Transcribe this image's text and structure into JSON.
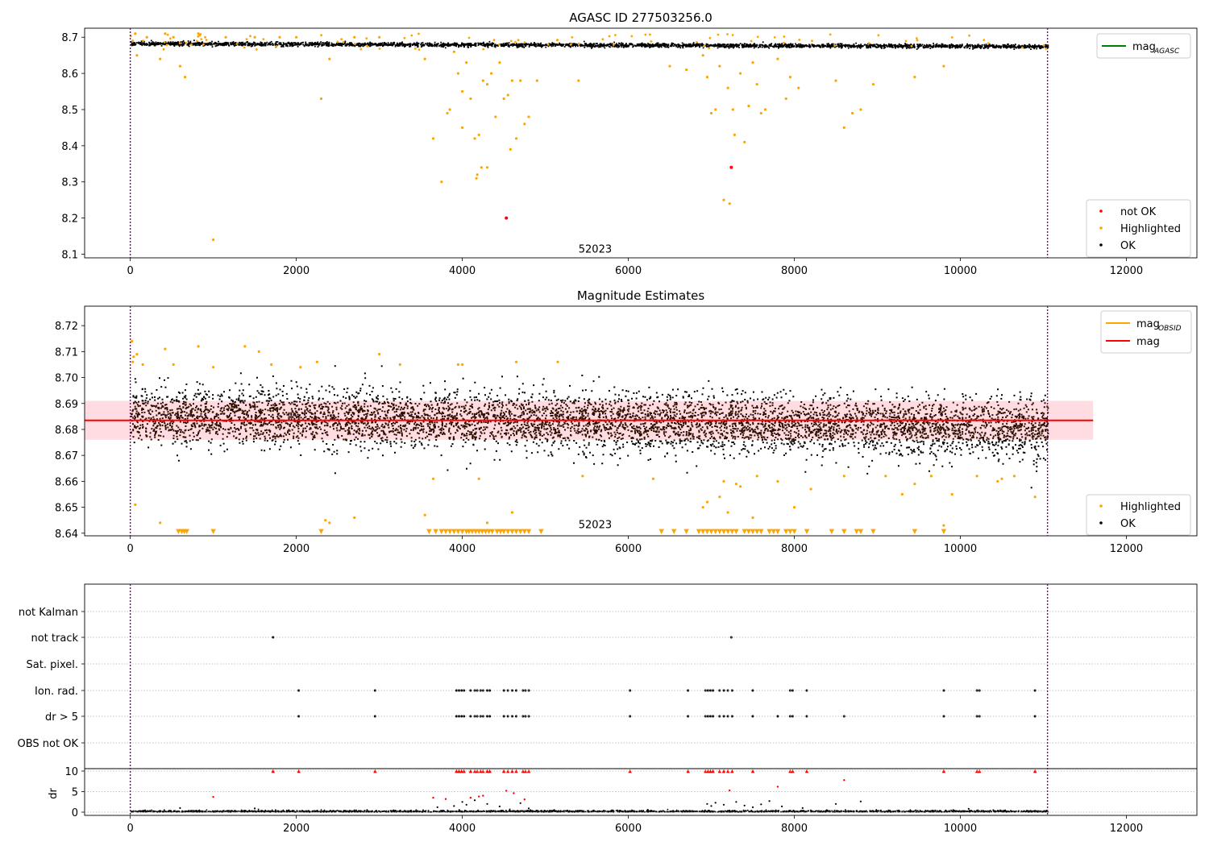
{
  "chart_data": [
    {
      "type": "scatter",
      "title": "AGASC ID 277503256.0",
      "xlim": [
        -550,
        12850
      ],
      "ylim": [
        8.09,
        8.725
      ],
      "xticks": [
        0,
        2000,
        4000,
        6000,
        8000,
        10000,
        12000
      ],
      "yticks": [
        8.1,
        8.2,
        8.3,
        8.4,
        8.5,
        8.6,
        8.7
      ],
      "vlines": [
        0,
        11050
      ],
      "annotation": {
        "text": "52023",
        "x": 5400,
        "y": 8.105
      },
      "legend_lines": [
        {
          "label": "mag",
          "subscript": "AGASC",
          "color": "#008000"
        }
      ],
      "legend_points": [
        {
          "label": "not OK",
          "color": "#ff0000"
        },
        {
          "label": "Highlighted",
          "color": "#ffa500"
        },
        {
          "label": "OK",
          "color": "#000000"
        }
      ],
      "ok_band": {
        "x_range": [
          0,
          11050
        ],
        "center": 8.684,
        "spread": 0.006,
        "slope": -7e-07,
        "count": 3200,
        "color": "#000000"
      },
      "highlighted": [
        [
          30,
          8.69
        ],
        [
          60,
          8.71
        ],
        [
          80,
          8.65
        ],
        [
          200,
          8.7
        ],
        [
          360,
          8.64
        ],
        [
          420,
          8.71
        ],
        [
          520,
          8.7
        ],
        [
          600,
          8.62
        ],
        [
          660,
          8.59
        ],
        [
          820,
          8.71
        ],
        [
          1000,
          8.14
        ],
        [
          1150,
          8.7
        ],
        [
          1500,
          8.7
        ],
        [
          1800,
          8.7
        ],
        [
          2000,
          8.7
        ],
        [
          2300,
          8.53
        ],
        [
          2400,
          8.64
        ],
        [
          2700,
          8.7
        ],
        [
          3000,
          8.7
        ],
        [
          3550,
          8.64
        ],
        [
          3650,
          8.42
        ],
        [
          3750,
          8.3
        ],
        [
          3820,
          8.49
        ],
        [
          3850,
          8.5
        ],
        [
          3900,
          8.66
        ],
        [
          3950,
          8.6
        ],
        [
          4000,
          8.45
        ],
        [
          4000,
          8.55
        ],
        [
          4050,
          8.63
        ],
        [
          4100,
          8.53
        ],
        [
          4150,
          8.42
        ],
        [
          4170,
          8.31
        ],
        [
          4180,
          8.32
        ],
        [
          4200,
          8.43
        ],
        [
          4230,
          8.34
        ],
        [
          4250,
          8.58
        ],
        [
          4300,
          8.34
        ],
        [
          4300,
          8.57
        ],
        [
          4350,
          8.6
        ],
        [
          4400,
          8.48
        ],
        [
          4450,
          8.63
        ],
        [
          4500,
          8.53
        ],
        [
          4550,
          8.54
        ],
        [
          4580,
          8.39
        ],
        [
          4600,
          8.58
        ],
        [
          4650,
          8.42
        ],
        [
          4700,
          8.58
        ],
        [
          4750,
          8.46
        ],
        [
          4800,
          8.48
        ],
        [
          4900,
          8.58
        ],
        [
          5400,
          8.58
        ],
        [
          6500,
          8.62
        ],
        [
          6700,
          8.61
        ],
        [
          6900,
          8.65
        ],
        [
          6950,
          8.59
        ],
        [
          7000,
          8.49
        ],
        [
          7050,
          8.5
        ],
        [
          7100,
          8.62
        ],
        [
          7150,
          8.25
        ],
        [
          7200,
          8.56
        ],
        [
          7220,
          8.24
        ],
        [
          7260,
          8.5
        ],
        [
          7280,
          8.43
        ],
        [
          7350,
          8.6
        ],
        [
          7400,
          8.41
        ],
        [
          7450,
          8.51
        ],
        [
          7500,
          8.63
        ],
        [
          7550,
          8.57
        ],
        [
          7600,
          8.49
        ],
        [
          7650,
          8.5
        ],
        [
          7800,
          8.64
        ],
        [
          7900,
          8.53
        ],
        [
          7950,
          8.59
        ],
        [
          8050,
          8.56
        ],
        [
          8500,
          8.58
        ],
        [
          8600,
          8.45
        ],
        [
          8700,
          8.49
        ],
        [
          8800,
          8.5
        ],
        [
          8950,
          8.57
        ],
        [
          9450,
          8.59
        ],
        [
          9800,
          8.62
        ]
      ],
      "not_ok": [
        [
          4530,
          8.2
        ],
        [
          7240,
          8.34
        ]
      ]
    },
    {
      "type": "scatter",
      "title": "Magnitude Estimates",
      "xlim": [
        -550,
        12850
      ],
      "ylim": [
        8.639,
        8.7275
      ],
      "xticks": [
        0,
        2000,
        4000,
        6000,
        8000,
        10000,
        12000
      ],
      "yticks": [
        8.64,
        8.65,
        8.66,
        8.67,
        8.68,
        8.69,
        8.7,
        8.71,
        8.72
      ],
      "vlines": [
        0,
        11050
      ],
      "annotation": {
        "text": "52023",
        "x": 5400,
        "y": 8.642
      },
      "mag_line": {
        "value": 8.6835,
        "x_range": [
          -550,
          11600
        ],
        "color": "#ff0000"
      },
      "mag_band": {
        "low": 8.676,
        "high": 8.691,
        "x_range": [
          -550,
          11600
        ],
        "color": "#ffc0c8"
      },
      "legend_lines": [
        {
          "label": "mag",
          "subscript": "OBSID",
          "color": "#ffa500"
        },
        {
          "label": "mag",
          "subscript": "",
          "color": "#ff0000"
        }
      ],
      "legend_points": [
        {
          "label": "Highlighted",
          "color": "#ffa500"
        },
        {
          "label": "OK",
          "color": "#000000"
        }
      ],
      "ok_band": {
        "x_range": [
          0,
          11050
        ],
        "center": 8.6855,
        "spread": 0.0055,
        "slope": -4e-07,
        "count": 6000,
        "color": "#2a0e00"
      },
      "highlighted": [
        [
          20,
          8.714
        ],
        [
          30,
          8.706
        ],
        [
          40,
          8.708
        ],
        [
          80,
          8.709
        ],
        [
          60,
          8.651
        ],
        [
          150,
          8.705
        ],
        [
          360,
          8.644
        ],
        [
          420,
          8.711
        ],
        [
          520,
          8.705
        ],
        [
          820,
          8.712
        ],
        [
          1000,
          8.704
        ],
        [
          1380,
          8.712
        ],
        [
          1550,
          8.71
        ],
        [
          1700,
          8.705
        ],
        [
          2050,
          8.704
        ],
        [
          2250,
          8.706
        ],
        [
          2350,
          8.645
        ],
        [
          2400,
          8.644
        ],
        [
          2700,
          8.646
        ],
        [
          3000,
          8.709
        ],
        [
          3250,
          8.705
        ],
        [
          3550,
          8.647
        ],
        [
          3650,
          8.661
        ],
        [
          3950,
          8.705
        ],
        [
          4000,
          8.705
        ],
        [
          4200,
          8.661
        ],
        [
          4300,
          8.644
        ],
        [
          4600,
          8.648
        ],
        [
          4650,
          8.706
        ],
        [
          5150,
          8.706
        ],
        [
          5450,
          8.662
        ],
        [
          6300,
          8.661
        ],
        [
          6900,
          8.65
        ],
        [
          6950,
          8.652
        ],
        [
          7100,
          8.654
        ],
        [
          7150,
          8.66
        ],
        [
          7200,
          8.648
        ],
        [
          7300,
          8.659
        ],
        [
          7350,
          8.658
        ],
        [
          7500,
          8.646
        ],
        [
          7550,
          8.662
        ],
        [
          7800,
          8.66
        ],
        [
          8000,
          8.65
        ],
        [
          8200,
          8.657
        ],
        [
          8600,
          8.662
        ],
        [
          9100,
          8.662
        ],
        [
          9300,
          8.655
        ],
        [
          9450,
          8.659
        ],
        [
          9650,
          8.662
        ],
        [
          9800,
          8.643
        ],
        [
          9900,
          8.655
        ],
        [
          10200,
          8.662
        ],
        [
          10450,
          8.66
        ],
        [
          10500,
          8.661
        ],
        [
          10650,
          8.662
        ],
        [
          10900,
          8.654
        ]
      ],
      "clipped_x": [
        580,
        620,
        650,
        680,
        1000,
        2300,
        3600,
        3680,
        3750,
        3800,
        3850,
        3900,
        3950,
        4000,
        4050,
        4080,
        4120,
        4160,
        4200,
        4240,
        4280,
        4320,
        4360,
        4420,
        4460,
        4500,
        4550,
        4600,
        4650,
        4700,
        4750,
        4800,
        4950,
        6400,
        6550,
        6700,
        6850,
        6900,
        6950,
        7000,
        7050,
        7100,
        7150,
        7200,
        7250,
        7300,
        7400,
        7450,
        7500,
        7550,
        7600,
        7700,
        7750,
        7800,
        7900,
        7950,
        8000,
        8150,
        8450,
        8600,
        8750,
        8800,
        8950,
        9450,
        9800
      ],
      "clip_value": 8.64
    },
    {
      "type": "scatter",
      "title": "",
      "xlim": [
        -550,
        12850
      ],
      "xticks": [
        0,
        2000,
        4000,
        6000,
        8000,
        10000,
        12000
      ],
      "vlines": [
        0,
        11050
      ],
      "flag_rows": [
        "not Kalman",
        "not track",
        "Sat. pixel.",
        "Ion. rad.",
        "dr > 5",
        "OBS not OK"
      ],
      "flag_points": {
        "not track": [
          1720,
          7240
        ],
        "Ion. rad.": [
          2030,
          2950,
          3930,
          3960,
          3990,
          4020,
          4100,
          4150,
          4180,
          4220,
          4250,
          4300,
          4330,
          4500,
          4550,
          4600,
          4650,
          4730,
          4760,
          4800,
          6020,
          6720,
          6930,
          6960,
          6990,
          7020,
          7100,
          7150,
          7200,
          7250,
          7500,
          7950,
          7980,
          8150,
          9800,
          10200,
          10230,
          10900
        ],
        "dr > 5": [
          2030,
          2950,
          3930,
          3960,
          3990,
          4020,
          4100,
          4150,
          4180,
          4220,
          4250,
          4300,
          4330,
          4500,
          4550,
          4600,
          4650,
          4730,
          4760,
          4800,
          6020,
          6720,
          6930,
          6960,
          6990,
          7020,
          7100,
          7150,
          7200,
          7250,
          7500,
          7800,
          7950,
          7980,
          8150,
          8600,
          9800,
          10200,
          10230,
          10900
        ]
      },
      "dr_ylabel": "dr",
      "dr_ylim": [
        -0.5,
        11
      ],
      "dr_yticks": [
        0,
        5,
        10
      ],
      "dr_clipped_x": [
        1720,
        2030,
        2950,
        3930,
        3960,
        3990,
        4020,
        4100,
        4150,
        4180,
        4220,
        4250,
        4300,
        4330,
        4500,
        4550,
        4600,
        4650,
        4730,
        4760,
        4800,
        6020,
        6720,
        6930,
        6960,
        6990,
        7020,
        7100,
        7150,
        7200,
        7250,
        7500,
        7950,
        7980,
        8150,
        9800,
        10200,
        10230,
        10900
      ],
      "dr_red_points": [
        [
          1000,
          3.7
        ],
        [
          3650,
          3.5
        ],
        [
          3800,
          3.2
        ],
        [
          4100,
          3.5
        ],
        [
          4200,
          3.8
        ],
        [
          4250,
          4.0
        ],
        [
          4530,
          5.2
        ],
        [
          4620,
          4.6
        ],
        [
          4750,
          3.1
        ],
        [
          7220,
          5.3
        ],
        [
          7800,
          6.2
        ],
        [
          8600,
          7.8
        ]
      ],
      "dr_black_extra": [
        [
          600,
          1.0
        ],
        [
          1500,
          0.9
        ],
        [
          3700,
          1.2
        ],
        [
          3900,
          1.5
        ],
        [
          4000,
          2.5
        ],
        [
          4050,
          1.8
        ],
        [
          4150,
          2.9
        ],
        [
          4300,
          2.0
        ],
        [
          4450,
          1.4
        ],
        [
          4700,
          2.2
        ],
        [
          4800,
          0.9
        ],
        [
          6950,
          2.0
        ],
        [
          7000,
          1.5
        ],
        [
          7050,
          2.3
        ],
        [
          7150,
          1.8
        ],
        [
          7300,
          2.5
        ],
        [
          7400,
          1.6
        ],
        [
          7500,
          1.2
        ],
        [
          7600,
          1.9
        ],
        [
          7700,
          2.7
        ],
        [
          7850,
          1.4
        ],
        [
          8100,
          1.0
        ],
        [
          8500,
          2.0
        ],
        [
          8800,
          2.6
        ],
        [
          10100,
          0.8
        ]
      ]
    }
  ]
}
